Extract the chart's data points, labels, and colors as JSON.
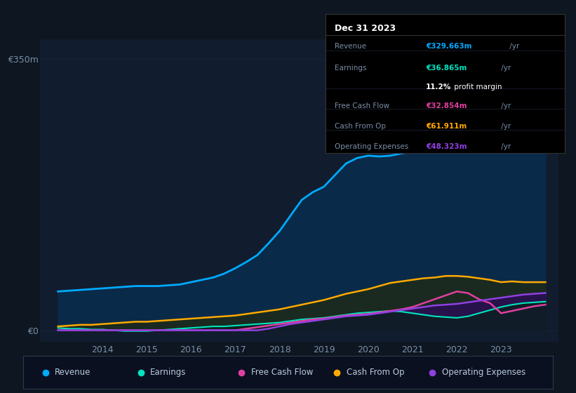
{
  "bg_color": "#0e1621",
  "plot_bg_color": "#111d2e",
  "title_box": {
    "date": "Dec 31 2023",
    "revenue": "€329.663m",
    "earnings": "€36.865m",
    "profit_margin": "11.2%",
    "free_cash_flow": "€32.854m",
    "cash_from_op": "€61.911m",
    "operating_expenses": "€48.323m"
  },
  "y_label_top": "€350m",
  "y_label_bottom": "€0",
  "revenue_color": "#00aaff",
  "revenue_fill": "#0a2a4a",
  "earnings_color": "#00e5c0",
  "earnings_fill": "#0a2a2a",
  "free_cash_flow_color": "#e040a0",
  "cash_from_op_color": "#ffaa00",
  "cash_from_op_fill": "#2a2010",
  "operating_expenses_color": "#9040e0",
  "operating_expenses_fill": "#2a1050",
  "grid_color": "#1a2a3a",
  "ylim": [
    -15,
    375
  ],
  "xlim_start": 2012.6,
  "xlim_end": 2024.3
}
